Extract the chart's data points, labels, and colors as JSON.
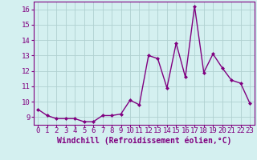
{
  "x": [
    0,
    1,
    2,
    3,
    4,
    5,
    6,
    7,
    8,
    9,
    10,
    11,
    12,
    13,
    14,
    15,
    16,
    17,
    18,
    19,
    20,
    21,
    22,
    23
  ],
  "y": [
    9.5,
    9.1,
    8.9,
    8.9,
    8.9,
    8.7,
    8.7,
    9.1,
    9.1,
    9.2,
    10.1,
    9.8,
    13.0,
    12.8,
    10.9,
    13.8,
    11.6,
    16.2,
    11.9,
    13.1,
    12.2,
    11.4,
    11.2,
    9.9
  ],
  "line_color": "#800080",
  "marker": "D",
  "marker_size": 2,
  "bg_color": "#d4f0f0",
  "grid_color": "#b0d0d0",
  "xlabel": "Windchill (Refroidissement éolien,°C)",
  "xlabel_fontsize": 7,
  "ylabel_ticks": [
    9,
    10,
    11,
    12,
    13,
    14,
    15,
    16
  ],
  "xlim": [
    -0.5,
    23.5
  ],
  "ylim": [
    8.5,
    16.5
  ],
  "xtick_labels": [
    "0",
    "1",
    "2",
    "3",
    "4",
    "5",
    "6",
    "7",
    "8",
    "9",
    "10",
    "11",
    "12",
    "13",
    "14",
    "15",
    "16",
    "17",
    "18",
    "19",
    "20",
    "21",
    "22",
    "23"
  ],
  "tick_fontsize": 6.5,
  "line_width": 1.0
}
